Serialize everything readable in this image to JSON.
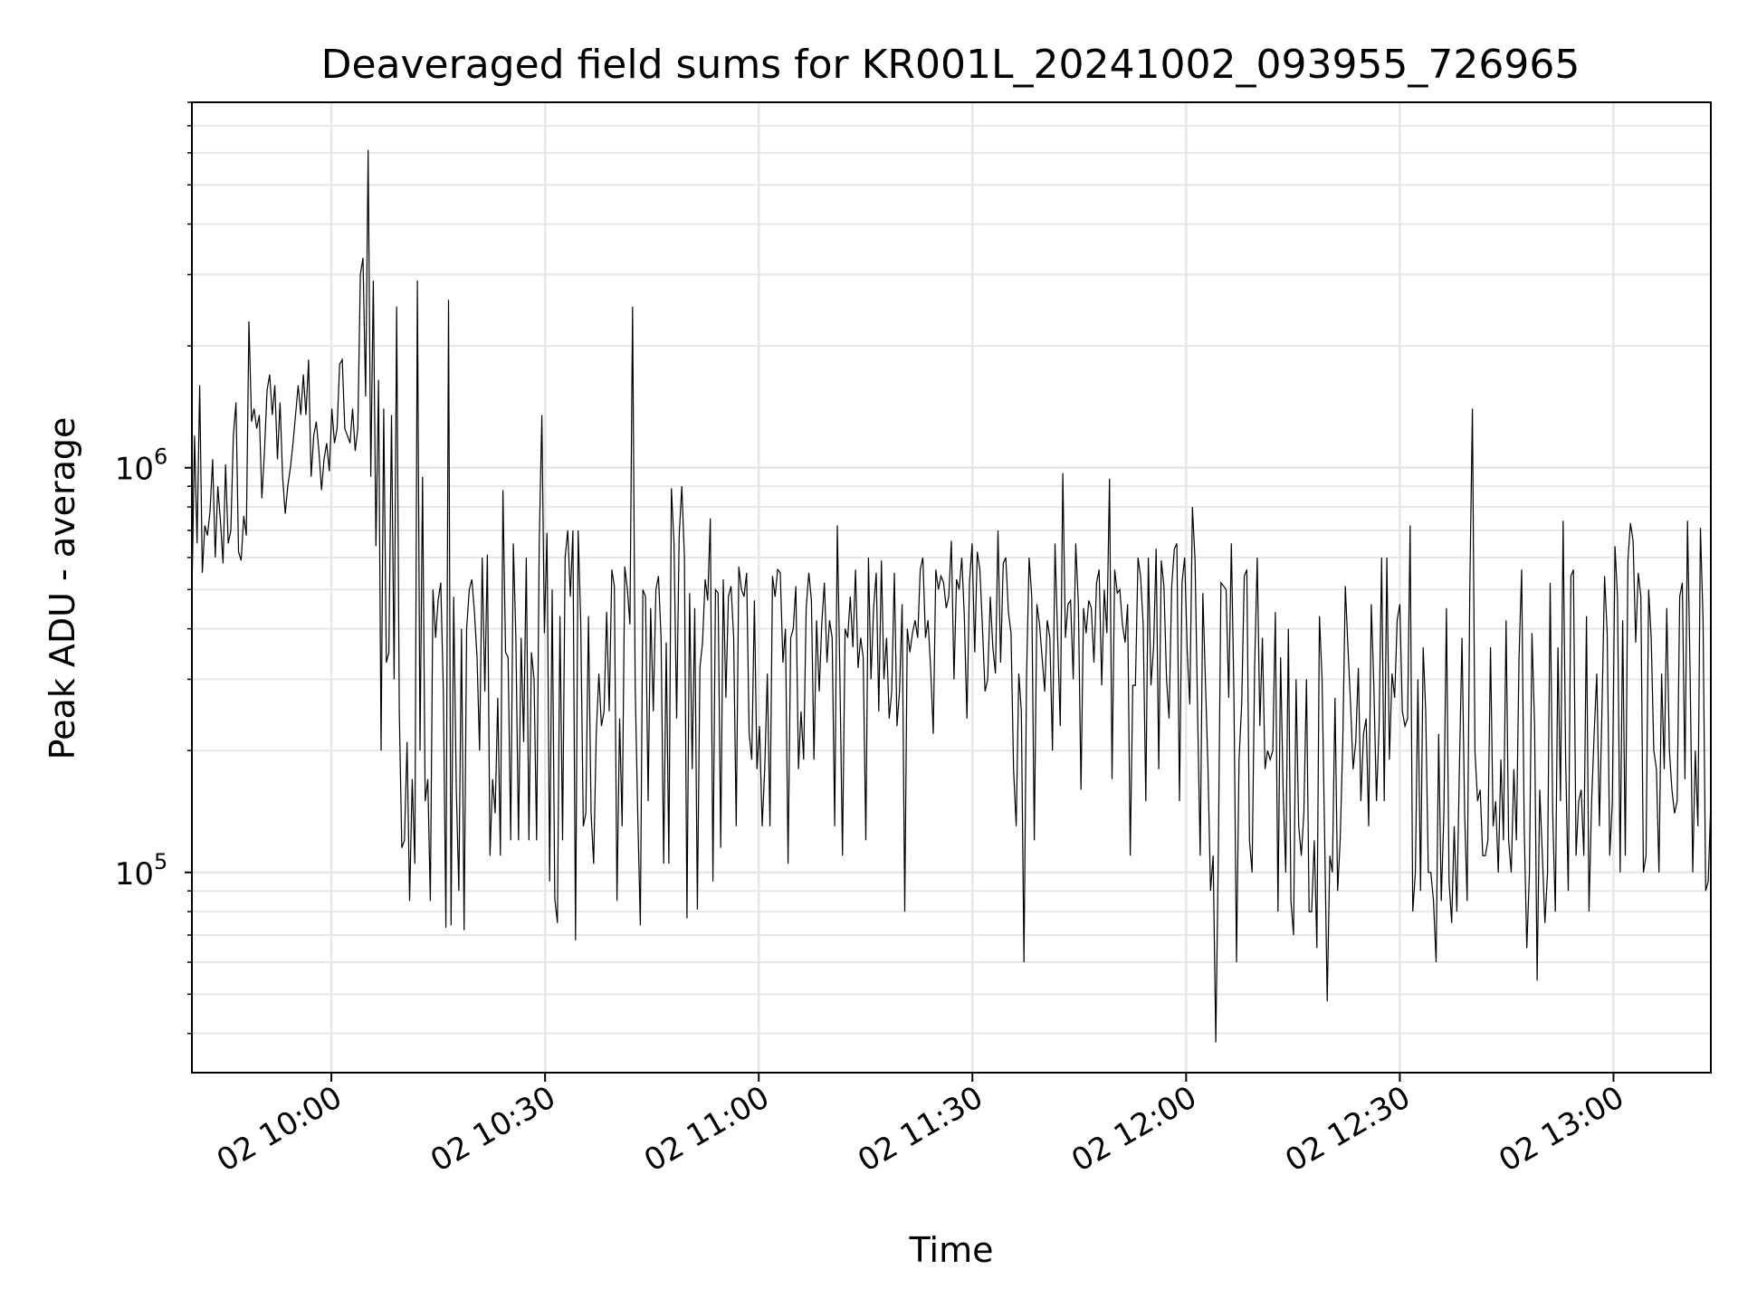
{
  "chart_data": {
    "type": "line",
    "title": "Deaveraged field sums for KR001L_20241002_093955_726965",
    "xlabel": "Time",
    "ylabel": "Peak ADU - average",
    "yscale": "log",
    "ylim": [
      32000,
      8000000
    ],
    "xlim": [
      "2024-10-02 09:40:25",
      "2024-10-02 13:13:40"
    ],
    "grid": true,
    "line_color": "#000000",
    "grid_color": "#e6e6e6",
    "x_ticks": [
      {
        "label": "02 10:00",
        "value": "2024-10-02 10:00"
      },
      {
        "label": "02 10:30",
        "value": "2024-10-02 10:30"
      },
      {
        "label": "02 11:00",
        "value": "2024-10-02 11:00"
      },
      {
        "label": "02 11:30",
        "value": "2024-10-02 11:30"
      },
      {
        "label": "02 12:00",
        "value": "2024-10-02 12:00"
      },
      {
        "label": "02 12:30",
        "value": "2024-10-02 12:30"
      },
      {
        "label": "02 13:00",
        "value": "2024-10-02 13:00"
      }
    ],
    "y_ticks": [
      {
        "base": "10",
        "exp": "5",
        "value": 100000
      },
      {
        "base": "10",
        "exp": "6",
        "value": 1000000
      }
    ],
    "series": [
      {
        "x_start": "2024-10-02 09:40:25",
        "x_end": "2024-10-02 13:13:40",
        "values": [
          480000,
          1200000,
          650000,
          1600000,
          550000,
          720000,
          680000,
          780000,
          1050000,
          600000,
          900000,
          740000,
          580000,
          1020000,
          650000,
          700000,
          1200000,
          1450000,
          620000,
          590000,
          760000,
          680000,
          2300000,
          1300000,
          1400000,
          1250000,
          1350000,
          840000,
          1100000,
          1550000,
          1700000,
          1350000,
          1600000,
          1050000,
          1450000,
          950000,
          770000,
          900000,
          1000000,
          1150000,
          1350000,
          1600000,
          1350000,
          1700000,
          1350000,
          1850000,
          950000,
          1200000,
          1300000,
          1100000,
          880000,
          1050000,
          1150000,
          980000,
          1400000,
          1150000,
          1250000,
          1800000,
          1850000,
          1250000,
          1200000,
          1150000,
          1400000,
          1100000,
          1250000,
          3000000,
          3300000,
          1500000,
          6100000,
          950000,
          2900000,
          640000,
          1650000,
          200000,
          1400000,
          330000,
          350000,
          1350000,
          300000,
          2500000,
          250000,
          115000,
          120000,
          210000,
          85000,
          170000,
          105000,
          2900000,
          200000,
          950000,
          150000,
          170000,
          85000,
          500000,
          380000,
          470000,
          520000,
          280000,
          73000,
          2600000,
          74000,
          480000,
          160000,
          90000,
          400000,
          72000,
          400000,
          500000,
          530000,
          440000,
          340000,
          200000,
          600000,
          280000,
          610000,
          110000,
          170000,
          140000,
          270000,
          110000,
          880000,
          350000,
          340000,
          120000,
          650000,
          380000,
          120000,
          380000,
          210000,
          600000,
          120000,
          350000,
          300000,
          120000,
          650000,
          1350000,
          390000,
          690000,
          95000,
          500000,
          86000,
          75000,
          430000,
          120000,
          600000,
          700000,
          480000,
          700000,
          68000,
          700000,
          420000,
          130000,
          140000,
          430000,
          140000,
          105000,
          220000,
          310000,
          230000,
          250000,
          440000,
          250000,
          560000,
          510000,
          85000,
          240000,
          130000,
          570000,
          500000,
          410000,
          2500000,
          290000,
          140000,
          74000,
          500000,
          480000,
          150000,
          450000,
          250000,
          500000,
          540000,
          380000,
          105000,
          370000,
          105000,
          890000,
          650000,
          240000,
          680000,
          900000,
          600000,
          77000,
          490000,
          180000,
          450000,
          81000,
          320000,
          370000,
          530000,
          470000,
          750000,
          95000,
          500000,
          490000,
          115000,
          530000,
          270000,
          480000,
          510000,
          380000,
          130000,
          570000,
          500000,
          480000,
          550000,
          220000,
          190000,
          470000,
          180000,
          230000,
          130000,
          180000,
          310000,
          130000,
          540000,
          480000,
          560000,
          550000,
          330000,
          400000,
          105000,
          380000,
          400000,
          510000,
          180000,
          250000,
          190000,
          450000,
          550000,
          470000,
          190000,
          420000,
          280000,
          410000,
          520000,
          330000,
          420000,
          380000,
          130000,
          720000,
          300000,
          110000,
          400000,
          380000,
          480000,
          360000,
          560000,
          320000,
          380000,
          340000,
          120000,
          600000,
          300000,
          450000,
          550000,
          250000,
          590000,
          300000,
          380000,
          240000,
          280000,
          550000,
          230000,
          280000,
          460000,
          80000,
          400000,
          350000,
          390000,
          420000,
          380000,
          560000,
          600000,
          380000,
          420000,
          320000,
          220000,
          560000,
          500000,
          540000,
          520000,
          450000,
          480000,
          660000,
          300000,
          530000,
          500000,
          600000,
          430000,
          240000,
          520000,
          650000,
          350000,
          620000,
          560000,
          400000,
          280000,
          300000,
          480000,
          360000,
          310000,
          700000,
          330000,
          580000,
          600000,
          440000,
          390000,
          180000,
          130000,
          310000,
          250000,
          60000,
          300000,
          600000,
          480000,
          120000,
          460000,
          410000,
          340000,
          280000,
          420000,
          380000,
          200000,
          650000,
          380000,
          230000,
          970000,
          380000,
          460000,
          470000,
          300000,
          650000,
          460000,
          160000,
          450000,
          390000,
          470000,
          450000,
          330000,
          520000,
          560000,
          290000,
          500000,
          390000,
          940000,
          170000,
          560000,
          490000,
          500000,
          410000,
          370000,
          460000,
          110000,
          290000,
          290000,
          600000,
          540000,
          410000,
          150000,
          600000,
          290000,
          360000,
          630000,
          180000,
          590000,
          510000,
          300000,
          240000,
          510000,
          630000,
          650000,
          150000,
          520000,
          600000,
          350000,
          260000,
          800000,
          590000,
          250000,
          110000,
          490000,
          300000,
          180000,
          90000,
          110000,
          38000,
          110000,
          520000,
          510000,
          500000,
          270000,
          650000,
          280000,
          60000,
          190000,
          260000,
          540000,
          560000,
          120000,
          100000,
          320000,
          600000,
          230000,
          380000,
          180000,
          200000,
          190000,
          200000,
          440000,
          80000,
          340000,
          160000,
          100000,
          400000,
          85000,
          70000,
          300000,
          130000,
          110000,
          140000,
          300000,
          80000,
          80000,
          120000,
          65000,
          430000,
          300000,
          125000,
          48000,
          110000,
          100000,
          270000,
          90000,
          120000,
          210000,
          510000,
          360000,
          260000,
          180000,
          210000,
          320000,
          150000,
          220000,
          240000,
          130000,
          460000,
          290000,
          150000,
          230000,
          600000,
          150000,
          600000,
          190000,
          310000,
          270000,
          420000,
          460000,
          250000,
          230000,
          240000,
          720000,
          80000,
          100000,
          300000,
          90000,
          360000,
          250000,
          100000,
          100000,
          85000,
          60000,
          220000,
          85000,
          140000,
          450000,
          95000,
          75000,
          130000,
          80000,
          180000,
          380000,
          140000,
          85000,
          500000,
          1400000,
          200000,
          150000,
          160000,
          110000,
          110000,
          120000,
          360000,
          130000,
          150000,
          100000,
          190000,
          120000,
          420000,
          120000,
          100000,
          180000,
          120000,
          340000,
          560000,
          130000,
          65000,
          100000,
          390000,
          230000,
          54000,
          160000,
          110000,
          75000,
          100000,
          520000,
          140000,
          80000,
          360000,
          150000,
          740000,
          190000,
          90000,
          540000,
          560000,
          110000,
          150000,
          160000,
          110000,
          430000,
          80000,
          150000,
          220000,
          310000,
          130000,
          250000,
          540000,
          390000,
          110000,
          150000,
          640000,
          480000,
          100000,
          420000,
          110000,
          590000,
          730000,
          660000,
          370000,
          550000,
          480000,
          100000,
          110000,
          500000,
          380000,
          200000,
          180000,
          100000,
          310000,
          180000,
          450000,
          200000,
          160000,
          140000,
          150000,
          480000,
          520000,
          170000,
          740000,
          310000,
          100000,
          200000,
          130000,
          710000,
          420000,
          90000,
          95000,
          150000
        ]
      }
    ]
  }
}
